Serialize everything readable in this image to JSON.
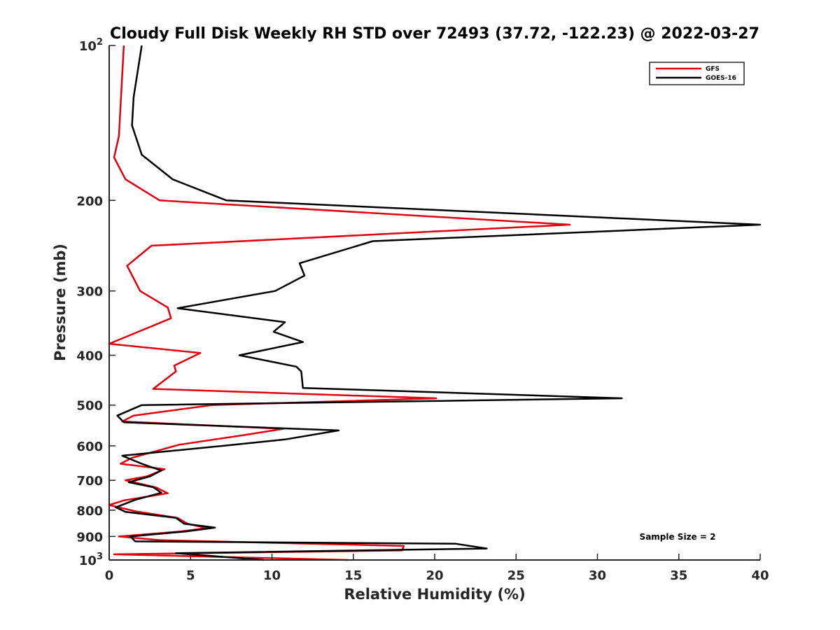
{
  "chart_data": {
    "type": "line",
    "title": "Cloudy Full Disk Weekly RH STD over 72493 (37.72, -122.23) @ 2022-03-27",
    "xlabel": "Relative Humidity (%)",
    "ylabel": "Pressure (mb)",
    "xlim": [
      0,
      40
    ],
    "ylim": [
      100,
      1000
    ],
    "y_scale": "log",
    "y_reversed": true,
    "grid": false,
    "legend_position": "top-right",
    "x_ticks": [
      0,
      5,
      10,
      15,
      20,
      25,
      30,
      35,
      40
    ],
    "y_ticks": [
      {
        "value": 100,
        "label": "10",
        "sup": "2"
      },
      {
        "value": 200,
        "label": "200",
        "sup": ""
      },
      {
        "value": 300,
        "label": "300",
        "sup": ""
      },
      {
        "value": 400,
        "label": "400",
        "sup": ""
      },
      {
        "value": 500,
        "label": "500",
        "sup": ""
      },
      {
        "value": 600,
        "label": "600",
        "sup": ""
      },
      {
        "value": 700,
        "label": "700",
        "sup": ""
      },
      {
        "value": 800,
        "label": "800",
        "sup": ""
      },
      {
        "value": 900,
        "label": "900",
        "sup": ""
      },
      {
        "value": 1000,
        "label": "10",
        "sup": "3"
      }
    ],
    "annotation": "Sample Size = 2",
    "series": [
      {
        "name": "GFS",
        "color": "#e0000f",
        "points": [
          [
            0.9,
            100
          ],
          [
            0.6,
            150
          ],
          [
            0.3,
            165
          ],
          [
            1.0,
            182
          ],
          [
            3.1,
            200
          ],
          [
            28.3,
            223
          ],
          [
            2.6,
            245
          ],
          [
            1.1,
            268
          ],
          [
            1.9,
            300
          ],
          [
            3.6,
            323
          ],
          [
            3.8,
            339
          ],
          [
            0.0,
            380
          ],
          [
            5.6,
            396
          ],
          [
            4.0,
            419
          ],
          [
            4.1,
            430
          ],
          [
            2.7,
            465
          ],
          [
            20.1,
            485
          ],
          [
            6.3,
            500
          ],
          [
            1.5,
            524
          ],
          [
            0.8,
            538
          ],
          [
            10.7,
            556
          ],
          [
            8.4,
            571
          ],
          [
            4.3,
            597
          ],
          [
            1.4,
            633
          ],
          [
            0.7,
            650
          ],
          [
            3.4,
            666
          ],
          [
            2.3,
            688
          ],
          [
            1.0,
            700
          ],
          [
            2.9,
            723
          ],
          [
            3.6,
            742
          ],
          [
            0.9,
            766
          ],
          [
            0.0,
            782
          ],
          [
            1.6,
            804
          ],
          [
            4.2,
            828
          ],
          [
            4.8,
            850
          ],
          [
            6.0,
            867
          ],
          [
            4.4,
            880
          ],
          [
            0.6,
            900
          ],
          [
            3.1,
            915
          ],
          [
            18.1,
            939
          ],
          [
            18.0,
            958
          ],
          [
            0.3,
            975
          ],
          [
            14.7,
            1000
          ]
        ]
      },
      {
        "name": "GOES-16",
        "color": "#000000",
        "points": [
          [
            2.0,
            100
          ],
          [
            1.5,
            126
          ],
          [
            1.4,
            143
          ],
          [
            2.0,
            163
          ],
          [
            3.9,
            182
          ],
          [
            7.2,
            200
          ],
          [
            40.0,
            223
          ],
          [
            16.2,
            240
          ],
          [
            11.7,
            265
          ],
          [
            12.0,
            280
          ],
          [
            10.2,
            300
          ],
          [
            4.2,
            324
          ],
          [
            10.8,
            345
          ],
          [
            10.1,
            360
          ],
          [
            11.9,
            377
          ],
          [
            8.0,
            400
          ],
          [
            11.5,
            421
          ],
          [
            11.8,
            430
          ],
          [
            11.9,
            463
          ],
          [
            31.5,
            485
          ],
          [
            2.0,
            500
          ],
          [
            0.5,
            524
          ],
          [
            0.9,
            540
          ],
          [
            14.1,
            560
          ],
          [
            10.8,
            583
          ],
          [
            7.0,
            600
          ],
          [
            0.8,
            627
          ],
          [
            2.0,
            650
          ],
          [
            3.2,
            670
          ],
          [
            2.5,
            688
          ],
          [
            1.2,
            706
          ],
          [
            2.7,
            722
          ],
          [
            3.2,
            740
          ],
          [
            1.6,
            764
          ],
          [
            0.4,
            790
          ],
          [
            1.0,
            806
          ],
          [
            4.1,
            828
          ],
          [
            4.6,
            850
          ],
          [
            6.5,
            865
          ],
          [
            4.7,
            880
          ],
          [
            1.3,
            900
          ],
          [
            1.6,
            920
          ],
          [
            21.3,
            930
          ],
          [
            23.2,
            950
          ],
          [
            4.1,
            970
          ],
          [
            9.5,
            1000
          ]
        ]
      }
    ]
  }
}
